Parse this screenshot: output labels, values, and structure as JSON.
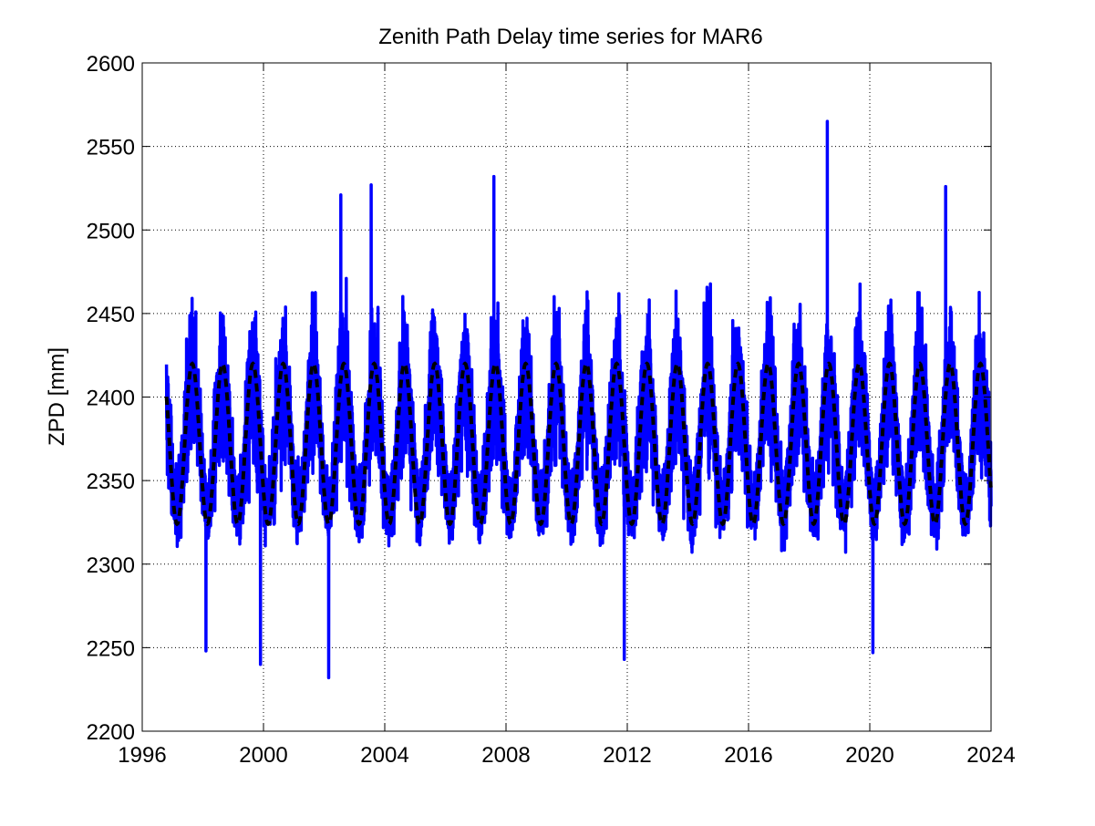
{
  "chart_data": {
    "type": "line",
    "title": "Zenith Path Delay time series for MAR6",
    "xlabel": "",
    "ylabel": "ZPD [mm]",
    "xlim": [
      1996,
      2024
    ],
    "ylim": [
      2200,
      2600
    ],
    "xticks": [
      1996,
      2000,
      2004,
      2008,
      2012,
      2016,
      2020,
      2024
    ],
    "yticks": [
      2200,
      2250,
      2300,
      2350,
      2400,
      2450,
      2500,
      2550,
      2600
    ],
    "grid": true,
    "legend": "none",
    "series": [
      {
        "style": "solid",
        "color": "#0000ff",
        "description_values": "daily ZPD observations",
        "x_start": 1996.8,
        "x_end": 2024.0,
        "annual_mean": 2372,
        "annual_amplitude": 38,
        "annual_peak_phase": 0.65,
        "noise_range": [
          2232,
          2565
        ],
        "extremes": [
          {
            "x": 2002.15,
            "y": 2232
          },
          {
            "x": 2018.6,
            "y": 2565
          },
          {
            "x": 2007.6,
            "y": 2532
          },
          {
            "x": 2003.55,
            "y": 2527
          },
          {
            "x": 2022.5,
            "y": 2526
          },
          {
            "x": 2002.55,
            "y": 2521
          },
          {
            "x": 1999.9,
            "y": 2240
          },
          {
            "x": 2011.9,
            "y": 2243
          },
          {
            "x": 2020.1,
            "y": 2247
          },
          {
            "x": 1998.1,
            "y": 2248
          }
        ]
      },
      {
        "style": "dashed",
        "color": "#000000",
        "description_values": "annual model fit",
        "x_start": 1996.8,
        "x_end": 2024.0,
        "mean": 2372,
        "amplitude": 48,
        "peak_phase": 0.65,
        "range": [
          2324,
          2420
        ]
      }
    ]
  }
}
